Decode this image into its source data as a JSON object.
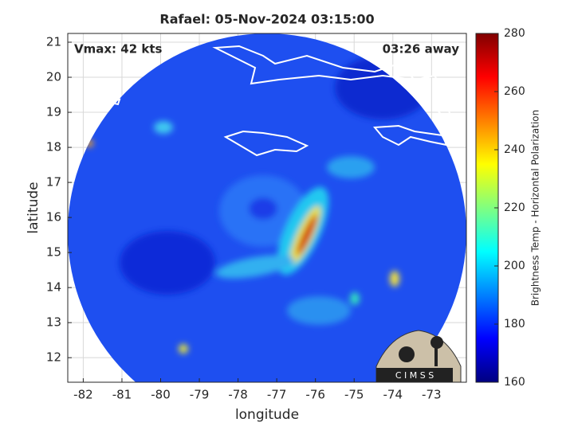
{
  "chart_data": {
    "type": "swath",
    "title": "Rafael: 05-Nov-2024 03:15:00",
    "annotations": [
      "Vmax: 42 kts",
      "03:26 away"
    ],
    "x_label": "longitude",
    "y_label": "latitude",
    "xlim": [
      -82.4,
      -72.1
    ],
    "xticks": [
      -82,
      -81,
      -80,
      -79,
      -78,
      -77,
      -76,
      -75,
      -74,
      -73
    ],
    "ylim": [
      11.3,
      21.25
    ],
    "yticks": [
      12,
      13,
      14,
      15,
      16,
      17,
      18,
      19,
      20,
      21
    ],
    "grid": true,
    "colorbar": {
      "label": "Brightness Temp - Horizontal Polarization",
      "colormap": "jet",
      "lim": [
        160,
        280
      ],
      "ticks": [
        160,
        180,
        200,
        220,
        240,
        260,
        280
      ]
    },
    "logo": "C I M S S"
  }
}
